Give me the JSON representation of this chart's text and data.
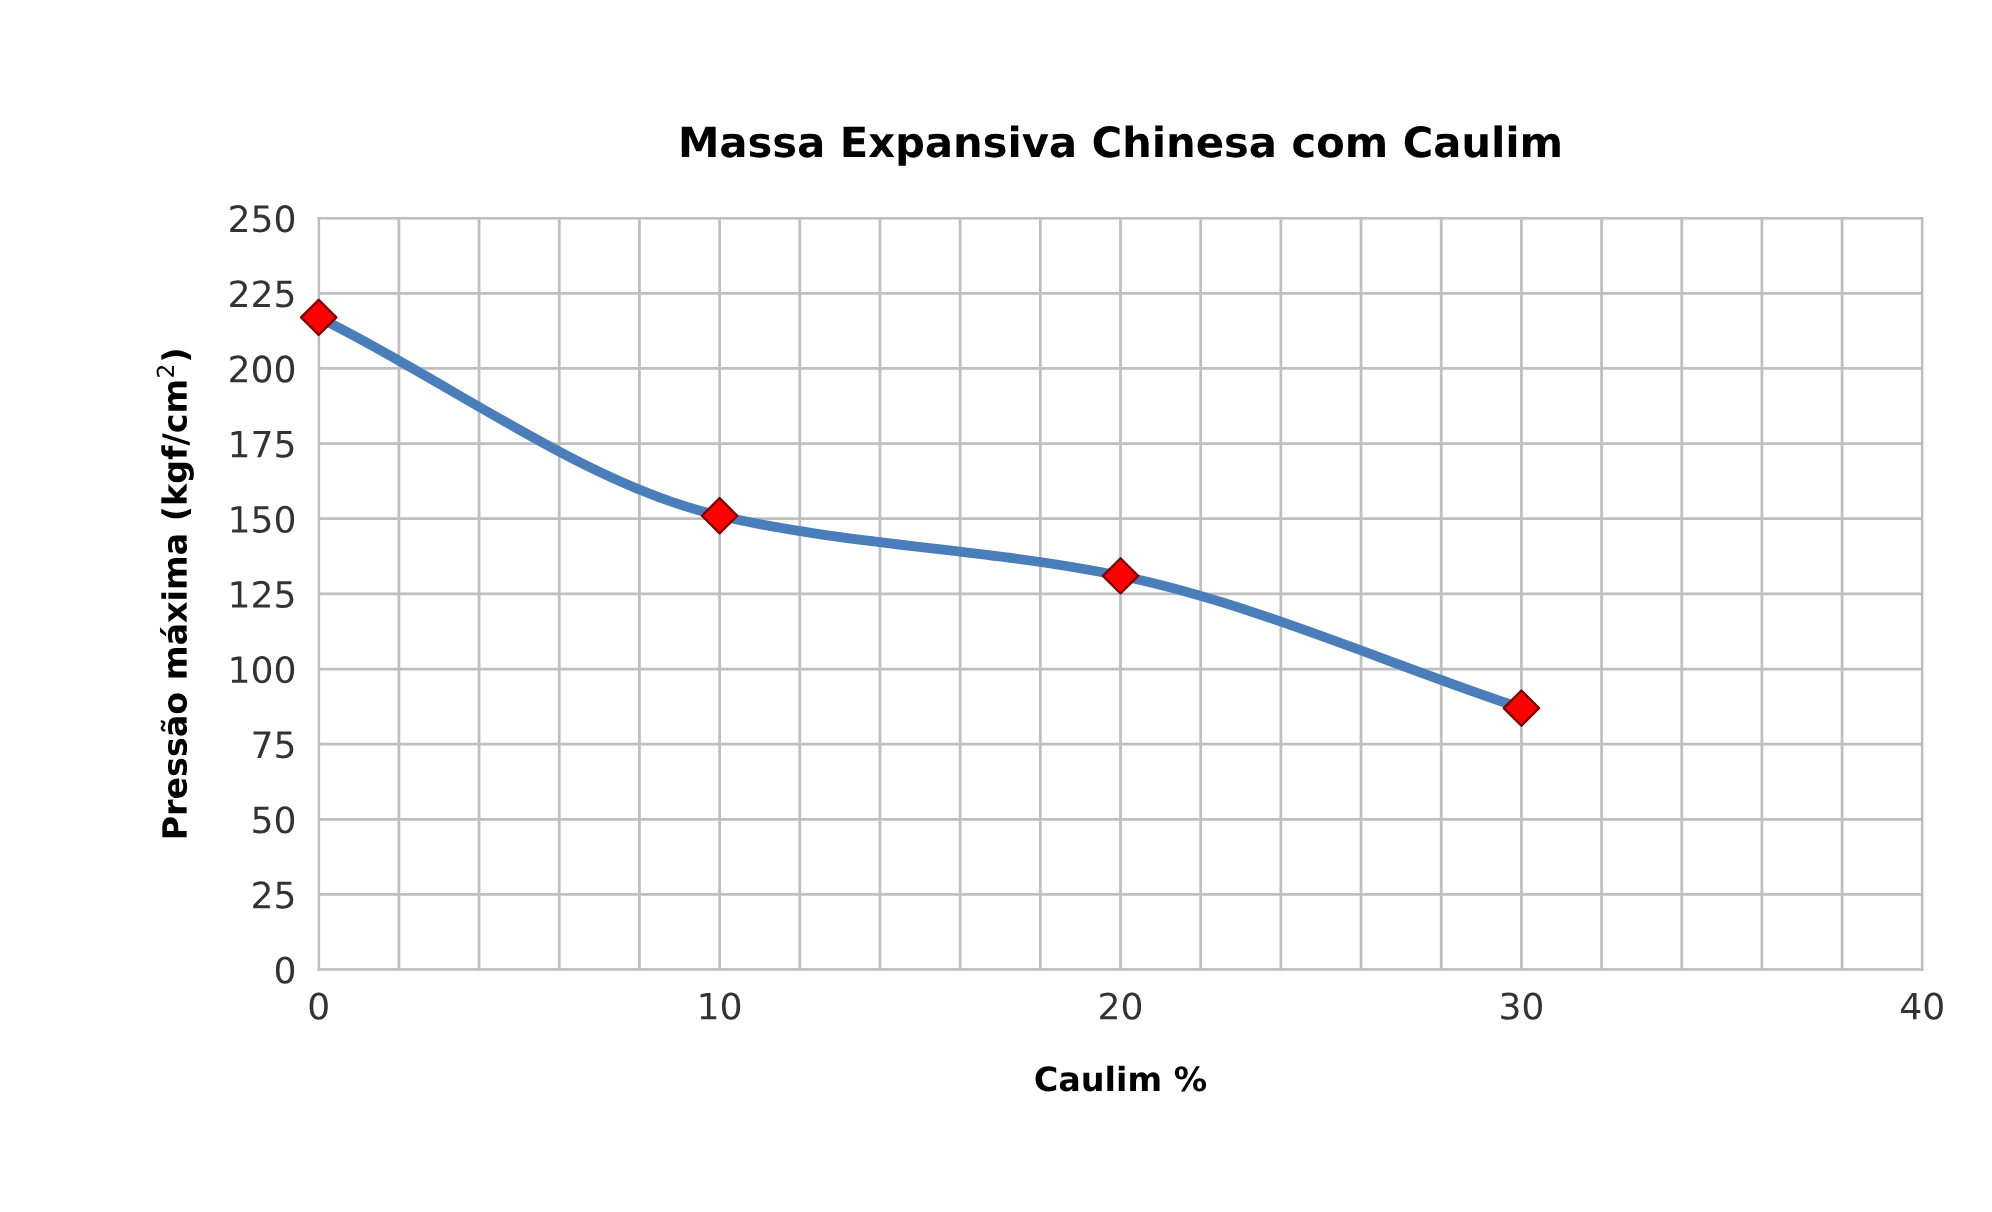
{
  "chart_data": {
    "type": "line",
    "title": "Massa Expansiva Chinesa com Caulim",
    "xlabel": "Caulim %",
    "ylabel": "Pressão máxima (kgf/cm$^{2}$)",
    "x": [
      0,
      10,
      20,
      30
    ],
    "series": [
      {
        "color": "#4a7ebb",
        "colors": [
          "#ff0000",
          "#ff0000",
          "#ff0000",
          "#ff0000"
        ],
        "values": [
          217,
          151,
          131,
          87
        ]
      }
    ],
    "marker": "diamond",
    "line_style": "solid",
    "grid": true,
    "legend": false,
    "xlim": [
      0,
      40
    ],
    "xticks": [
      0,
      {
        "value": 2,
        "label": null
      },
      {
        "value": 4,
        "label": null
      },
      {
        "value": 6,
        "label": null
      },
      {
        "value": 8,
        "label": null
      },
      10,
      {
        "value": 12,
        "label": null
      },
      {
        "value": 14,
        "label": null
      },
      {
        "value": 16,
        "label": null
      },
      {
        "value": 18,
        "label": null
      },
      20,
      {
        "value": 22,
        "label": null
      },
      {
        "value": 24,
        "label": null
      },
      {
        "value": 26,
        "label": null
      },
      {
        "value": 28,
        "label": null
      },
      30,
      {
        "value": 32,
        "label": null
      },
      {
        "value": 34,
        "label": null
      },
      {
        "value": 36,
        "label": null
      },
      {
        "value": 38,
        "label": null
      },
      40
    ],
    "ylim": [
      0,
      250
    ],
    "yticks": [
      0,
      25,
      50,
      75,
      100,
      125,
      150,
      175,
      200,
      225,
      250
    ]
  }
}
